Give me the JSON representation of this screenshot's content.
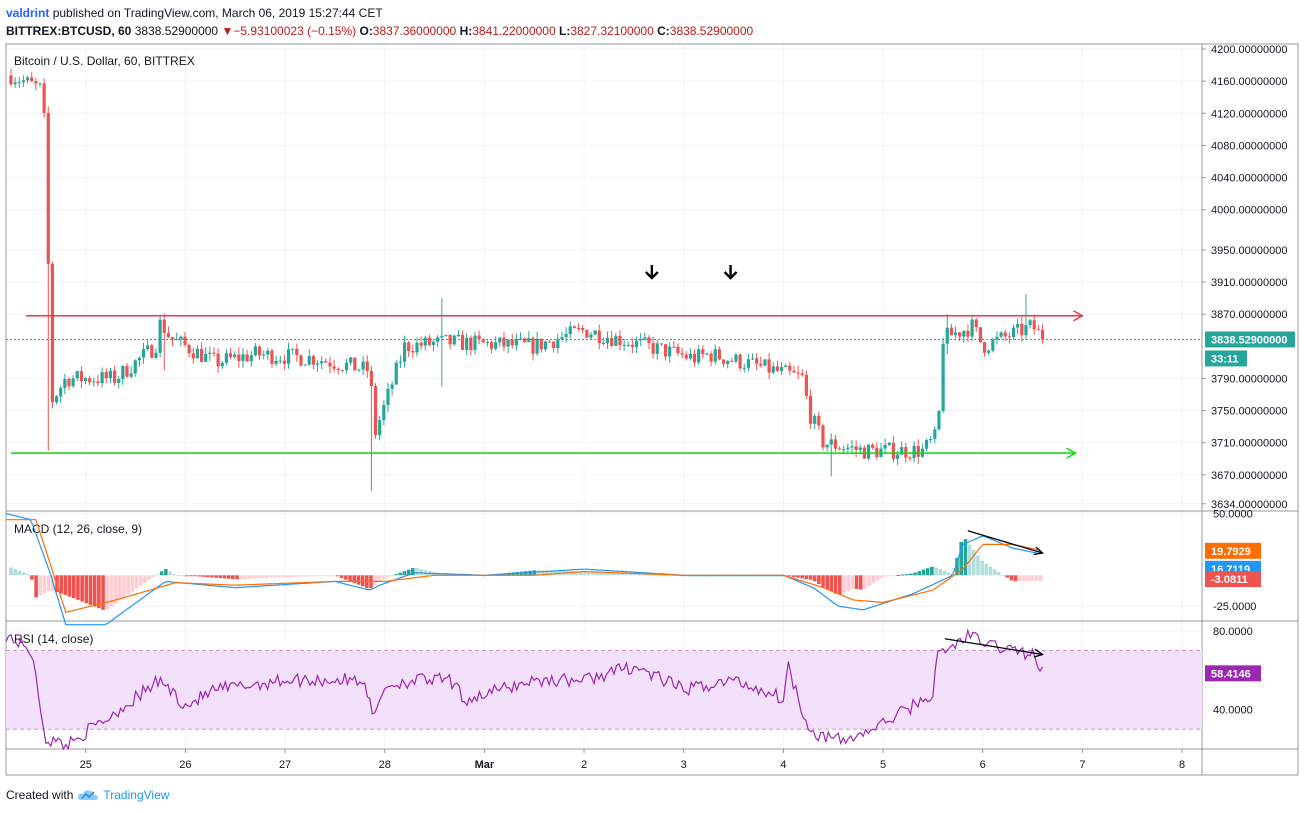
{
  "header": {
    "author": "valdrint",
    "publish_text": "published on TradingView.com, March 06, 2019 15:27:44 CET",
    "symbol": "BITTREX:BTCUSD, 60",
    "price": "3838.52900000",
    "change": "−5.93100023 (−0.15%)",
    "o_label": "O:",
    "o_value": "3837.36000000",
    "h_label": "H:",
    "h_value": "3841.22000000",
    "l_label": "L:",
    "l_value": "3827.32100000",
    "c_label": "C:",
    "c_value": "3838.52900000"
  },
  "footer": {
    "created_with": "Created with",
    "brand": "TradingView"
  },
  "colors": {
    "up": "#26a69a",
    "down": "#ef5350",
    "resistance": "#f23645",
    "support": "#00e100",
    "macd": "#2196f3",
    "signal": "#ff6d00",
    "rsi": "#9c27b0",
    "rsi_band": "#f3e0fb",
    "grid": "#f0f3fa"
  },
  "icons": {
    "down_arrow": "arrow-down-icon",
    "logo": "tradingview-cloud-icon"
  },
  "chart_data": [
    {
      "type": "candlestick",
      "title": "Bitcoin / U.S. Dollar, 60, BITTREX",
      "x_ticks": [
        "25",
        "26",
        "27",
        "28",
        "Mar",
        "2",
        "3",
        "4",
        "5",
        "6",
        "7",
        "8"
      ],
      "x_tick_days": [
        0,
        1,
        2,
        3,
        4,
        5,
        6,
        7,
        8,
        9,
        10,
        11
      ],
      "y_ticks": [
        "4200.00000000",
        "4160.00000000",
        "4120.00000000",
        "4080.00000000",
        "4040.00000000",
        "4000.00000000",
        "3950.00000000",
        "3910.00000000",
        "3870.00000000",
        "3790.00000000",
        "3750.00000000",
        "3710.00000000",
        "3670.00000000",
        "3634.00000000"
      ],
      "y_tick_values": [
        4200,
        4160,
        4120,
        4080,
        4040,
        4000,
        3950,
        3910,
        3870,
        3790,
        3750,
        3710,
        3670,
        3634
      ],
      "ylim": [
        3625,
        4205
      ],
      "xlim_days": [
        -0.8,
        11.2
      ],
      "last_price_label": "3838.52900000",
      "countdown_label": "33:11",
      "last_price": 3838.529,
      "resistance_level": 3868,
      "support_level": 3697,
      "arrow_markers_days": [
        5.68,
        6.47
      ],
      "anchors_days": [
        -0.8,
        -0.45,
        -0.4,
        -0.35,
        -0.2,
        0.3,
        0.7,
        0.75,
        0.85,
        1.3,
        1.7,
        2.3,
        2.85,
        2.9,
        3.2,
        3.6,
        4.5,
        5.0,
        6.1,
        6.25,
        6.6,
        7.2,
        7.25,
        7.4,
        7.8,
        8.4,
        8.55,
        8.6,
        8.9,
        9.0,
        9.5,
        9.6
      ],
      "anchors_price": [
        4170,
        4150,
        4090,
        3760,
        3790,
        3790,
        3830,
        3860,
        3840,
        3810,
        3820,
        3815,
        3800,
        3720,
        3830,
        3835,
        3830,
        3850,
        3815,
        3820,
        3810,
        3790,
        3750,
        3710,
        3700,
        3700,
        3720,
        3840,
        3855,
        3830,
        3855,
        3840
      ],
      "spikes": [
        {
          "day": -0.38,
          "high": 4100,
          "low": 3700
        },
        {
          "day": 0.78,
          "high": 3865,
          "low": 3800
        },
        {
          "day": 2.88,
          "high": 3800,
          "low": 3650
        },
        {
          "day": 3.58,
          "high": 3890,
          "low": 3780
        },
        {
          "day": 7.48,
          "high": 3720,
          "low": 3668
        },
        {
          "day": 8.63,
          "high": 3870,
          "low": 3820
        },
        {
          "day": 9.45,
          "high": 3895,
          "low": 3840
        }
      ]
    },
    {
      "type": "macd",
      "title": "MACD (12, 26, close, 9)",
      "y_ticks": [
        "50.0000",
        "-25.0000"
      ],
      "y_tick_values": [
        50,
        -25
      ],
      "ylim": [
        -37,
        52
      ],
      "labels": [
        {
          "text": "19.7929",
          "value": 19.7929,
          "color": "#ff6d00"
        },
        {
          "text": "16.7119",
          "value": 16.7119,
          "color": "#2196f3"
        },
        {
          "text": "-3.0811",
          "value": -3.0811,
          "color": "#ef5350"
        }
      ],
      "macd_days": [
        -0.8,
        -0.55,
        -0.35,
        -0.2,
        0.2,
        0.8,
        1.5,
        2.5,
        2.85,
        2.95,
        3.3,
        4.0,
        5.0,
        6.0,
        7.0,
        7.3,
        7.55,
        7.8,
        8.3,
        8.7,
        8.8,
        9.0,
        9.3,
        9.6
      ],
      "macd_values": [
        50,
        45,
        0,
        -40,
        -40,
        -5,
        -10,
        -5,
        -12,
        -8,
        2,
        0,
        5,
        0,
        0,
        -10,
        -25,
        -28,
        -15,
        0,
        25,
        32,
        22,
        17
      ],
      "signal_days": [
        -0.8,
        -0.5,
        -0.2,
        0.3,
        0.9,
        1.5,
        2.5,
        3.0,
        3.5,
        4.5,
        5.0,
        6.0,
        7.0,
        7.4,
        7.7,
        8.0,
        8.5,
        8.8,
        9.0,
        9.3,
        9.6
      ],
      "signal_values": [
        45,
        45,
        -30,
        -20,
        -6,
        -8,
        -5,
        -5,
        0,
        0,
        3,
        0,
        0,
        -10,
        -20,
        -22,
        -12,
        5,
        25,
        25,
        19.8
      ],
      "divergence_days": [
        8.85,
        9.6
      ],
      "divergence_values": [
        36,
        18
      ]
    },
    {
      "type": "line",
      "title": "RSI (14, close)",
      "y_ticks": [
        "80.0000",
        "40.0000"
      ],
      "y_tick_values": [
        80,
        40
      ],
      "ylim": [
        20,
        85
      ],
      "band": [
        30,
        70
      ],
      "last_label": "58.4146",
      "last_value": 58.4146,
      "days": [
        -0.8,
        -0.55,
        -0.45,
        -0.4,
        -0.2,
        0.2,
        0.75,
        1.0,
        1.3,
        2.0,
        2.8,
        2.88,
        3.0,
        3.3,
        3.65,
        3.8,
        4.5,
        5.0,
        5.5,
        6.0,
        6.5,
        7.0,
        7.05,
        7.2,
        7.3,
        7.6,
        7.9,
        8.3,
        8.5,
        8.55,
        8.7,
        8.85,
        9.0,
        9.5,
        9.6
      ],
      "values": [
        78,
        70,
        40,
        25,
        22,
        35,
        55,
        42,
        50,
        55,
        55,
        35,
        52,
        55,
        55,
        45,
        55,
        55,
        62,
        50,
        55,
        46,
        62,
        38,
        28,
        24,
        30,
        42,
        48,
        68,
        72,
        78,
        74,
        68,
        58.4
      ],
      "divergence_days": [
        8.62,
        9.6
      ],
      "divergence_values": [
        76,
        68
      ]
    }
  ]
}
